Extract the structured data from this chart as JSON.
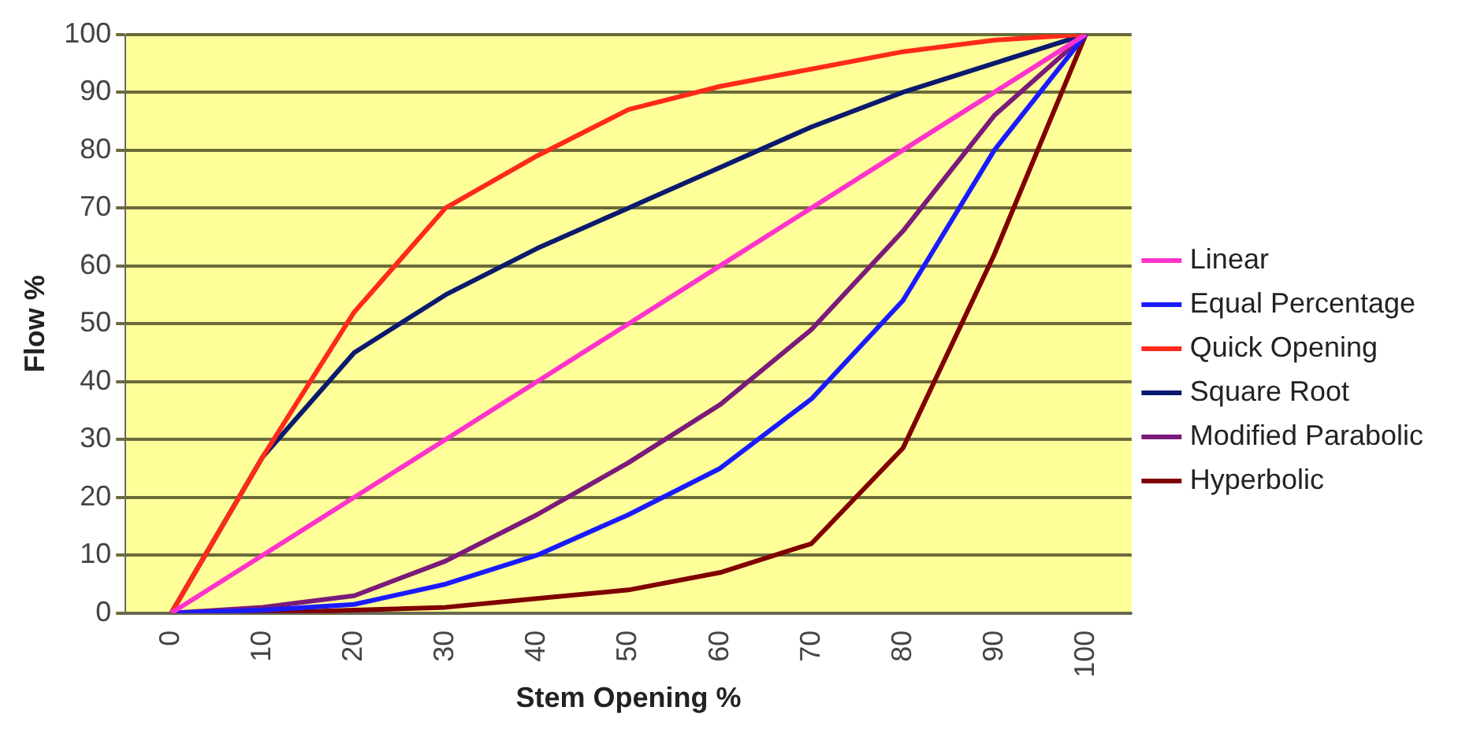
{
  "chart_data": {
    "type": "line",
    "xlabel": "Stem Opening %",
    "ylabel": "Flow %",
    "categories": [
      "0",
      "10",
      "20",
      "30",
      "40",
      "50",
      "60",
      "70",
      "80",
      "90",
      "100"
    ],
    "series": [
      {
        "name": "Linear",
        "color": "#ff33cc",
        "values": [
          0,
          10,
          20,
          30,
          40,
          50,
          60,
          70,
          80,
          90,
          100
        ]
      },
      {
        "name": "Equal Percentage",
        "color": "#1a1aff",
        "values": [
          0,
          0.5,
          1.5,
          5,
          10,
          17,
          25,
          37,
          54,
          80,
          100
        ]
      },
      {
        "name": "Quick Opening",
        "color": "#ff2a1a",
        "values": [
          0,
          27,
          52,
          70,
          79,
          87,
          91,
          94,
          97,
          99,
          100
        ]
      },
      {
        "name": "Square Root",
        "color": "#0a1a6e",
        "values": [
          0,
          27,
          45,
          55,
          63,
          70,
          77,
          84,
          90,
          95,
          100
        ]
      },
      {
        "name": "Modified Parabolic",
        "color": "#7a1a7a",
        "values": [
          0,
          1,
          3,
          9,
          17,
          26,
          36,
          49,
          66,
          86,
          100
        ]
      },
      {
        "name": "Hyperbolic",
        "color": "#800000",
        "values": [
          0,
          0,
          0.5,
          1,
          2.5,
          4,
          7,
          12,
          28.5,
          62,
          100
        ]
      }
    ],
    "ylim": [
      0,
      100
    ],
    "yticks": [
      0,
      10,
      20,
      30,
      40,
      50,
      60,
      70,
      80,
      90,
      100
    ],
    "grid": "y",
    "legend": "right",
    "marker": "none",
    "line_style": "solid"
  }
}
